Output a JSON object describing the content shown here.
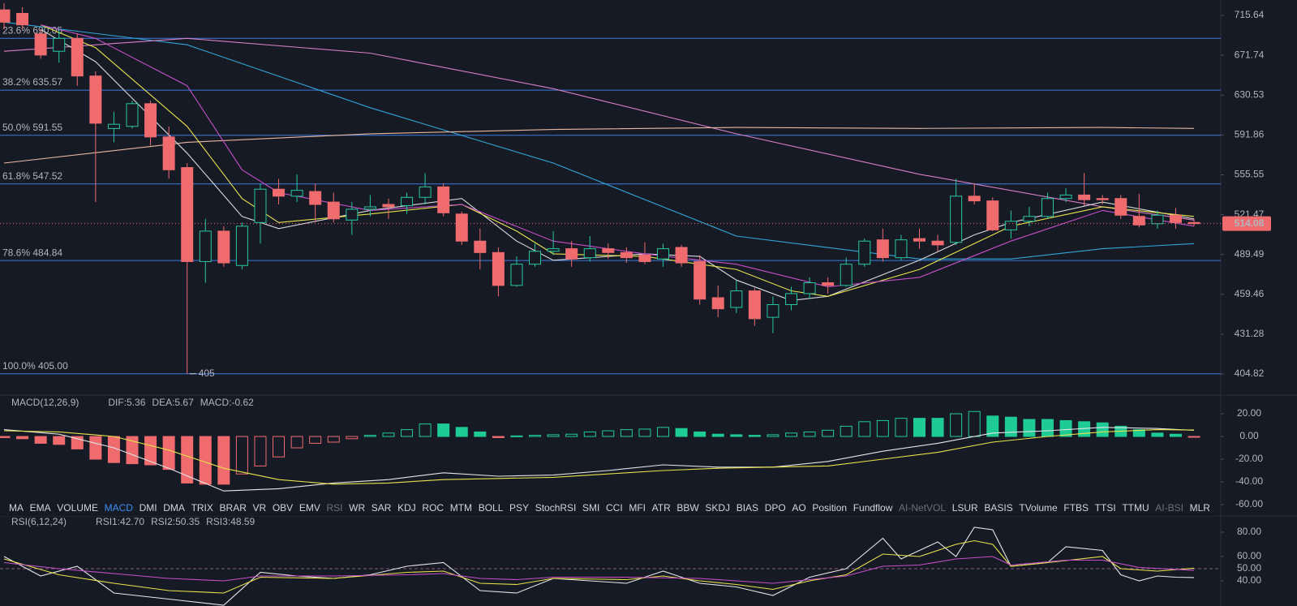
{
  "chart_data": [
    {
      "type": "candlestick",
      "log": true,
      "ylim": [
        391.5,
        733.4
      ],
      "yticks": [
        715.64,
        671.74,
        630.53,
        591.86,
        555.55,
        521.47,
        489.49,
        459.46,
        431.28,
        404.82
      ],
      "open": [
        722,
        718,
        695,
        676,
        690,
        650,
        598,
        600,
        622,
        590,
        562,
        484,
        508,
        481,
        515,
        543,
        537,
        541,
        532,
        517,
        526,
        530,
        529,
        536,
        545,
        522,
        500,
        491,
        466,
        482,
        492,
        494,
        487,
        494,
        491,
        489,
        486,
        495,
        484,
        457,
        450,
        462,
        443,
        452,
        460,
        468,
        466,
        482,
        501,
        487,
        502,
        500,
        499,
        537,
        533,
        509,
        516,
        520,
        535,
        538,
        535,
        535,
        520,
        514,
        521,
        515
      ],
      "high": [
        730,
        725,
        700,
        700,
        695,
        655,
        614,
        625,
        625,
        600,
        566,
        518,
        512,
        515,
        548,
        552,
        556,
        548,
        540,
        532,
        538,
        535,
        540,
        557,
        548,
        524,
        510,
        495,
        488,
        498,
        508,
        500,
        504,
        498,
        495,
        499,
        498,
        497,
        489,
        466,
        470,
        464,
        458,
        465,
        472,
        472,
        487,
        502,
        510,
        505,
        510,
        505,
        552,
        548,
        536,
        525,
        528,
        540,
        544,
        557,
        538,
        538,
        539,
        525,
        527,
        518
      ],
      "low": [
        700,
        700,
        668,
        664,
        640,
        532,
        585,
        598,
        582,
        552,
        405,
        468,
        480,
        478,
        498,
        530,
        532,
        515,
        515,
        505,
        520,
        518,
        522,
        530,
        520,
        497,
        478,
        458,
        465,
        480,
        489,
        480,
        484,
        486,
        483,
        482,
        480,
        480,
        452,
        443,
        446,
        437,
        432,
        448,
        456,
        460,
        465,
        480,
        484,
        485,
        494,
        492,
        497,
        530,
        508,
        502,
        512,
        518,
        532,
        529,
        530,
        518,
        511,
        510,
        510,
        512
      ],
      "close": [
        708,
        705,
        672,
        690,
        650,
        603,
        602,
        622,
        590,
        560,
        484,
        508,
        483,
        512,
        543,
        537,
        542,
        530,
        518,
        526,
        528,
        528,
        536,
        545,
        523,
        500,
        491,
        466,
        482,
        492,
        494,
        486,
        494,
        491,
        487,
        484,
        494,
        483,
        456,
        449,
        462,
        442,
        452,
        460,
        468,
        466,
        482,
        500,
        487,
        501,
        500,
        497,
        537,
        533,
        509,
        516,
        520,
        535,
        538,
        534,
        534,
        521,
        513,
        521,
        515,
        514.08
      ],
      "up_color": "#26c6a0",
      "down_color": "#ef6b6e",
      "series": [
        {
          "color": "#2fa6d8",
          "x": [
            0,
            10,
            20,
            30,
            40,
            50,
            55,
            60,
            65
          ],
          "values": [
            708,
            683,
            618,
            566,
            504,
            486,
            486,
            494,
            498
          ]
        },
        {
          "color": "#d77fc4",
          "x": [
            0,
            10,
            20,
            30,
            40,
            50,
            60,
            65
          ],
          "values": [
            676,
            690,
            674,
            637,
            593,
            556,
            528,
            517
          ]
        },
        {
          "color": "#e9b7a0",
          "x": [
            0,
            10,
            20,
            30,
            40,
            50,
            60,
            65
          ],
          "values": [
            566,
            585,
            593,
            597,
            599,
            598,
            599,
            598
          ]
        },
        {
          "color": "#d9d9d9",
          "x": [
            2,
            5,
            10,
            13,
            15,
            20,
            25,
            28,
            30,
            35,
            38,
            40,
            43,
            45,
            50,
            53,
            55,
            60,
            65
          ],
          "values": [
            700,
            665,
            575,
            520,
            510,
            525,
            535,
            500,
            485,
            490,
            488,
            470,
            455,
            458,
            485,
            505,
            515,
            532,
            518
          ]
        },
        {
          "color": "#e8e34a",
          "x": [
            2,
            5,
            10,
            13,
            15,
            20,
            25,
            28,
            30,
            35,
            40,
            43,
            45,
            50,
            53,
            55,
            60,
            65
          ],
          "values": [
            705,
            680,
            600,
            535,
            515,
            522,
            530,
            508,
            490,
            488,
            478,
            462,
            458,
            478,
            498,
            512,
            528,
            520
          ]
        },
        {
          "color": "#c64fc8",
          "x": [
            2,
            5,
            10,
            13,
            15,
            20,
            25,
            30,
            35,
            40,
            45,
            50,
            55,
            60,
            65
          ],
          "values": [
            705,
            690,
            640,
            560,
            540,
            525,
            530,
            500,
            490,
            482,
            465,
            472,
            500,
            525,
            512
          ]
        }
      ],
      "fib_color": "#3d7be0",
      "fib_levels": [
        {
          "value": 690.05,
          "label": "23.6% 690.05"
        },
        {
          "value": 635.57,
          "label": "38.2% 635.57"
        },
        {
          "value": 591.55,
          "label": "50.0% 591.55"
        },
        {
          "value": 547.52,
          "label": "61.8% 547.52"
        },
        {
          "value": 484.84,
          "label": "78.6% 484.84"
        },
        {
          "value": 405.0,
          "label": "100.0% 405.00"
        }
      ],
      "low_marker": 405,
      "last_price": 514.08
    },
    {
      "type": "macd",
      "title": "MACD(12,26,9)",
      "legend": [
        {
          "text": "DIF:5.36",
          "color": "#e6e6e6"
        },
        {
          "text": "DEA:5.67",
          "color": "#e8e34a"
        },
        {
          "text": "MACD:-0.62",
          "color": "#ef6b6e"
        }
      ],
      "ylim": [
        -65.7,
        34.3
      ],
      "yticks": [
        {
          "value": 20,
          "label": "20.00"
        },
        {
          "value": 0,
          "label": "0.00"
        },
        {
          "value": -20,
          "label": "-20.00"
        },
        {
          "value": -40,
          "label": "-40.00"
        },
        {
          "value": -60,
          "label": "-60.00"
        }
      ],
      "histogram": [
        -1,
        -2,
        -6,
        -7,
        -11,
        -20,
        -23,
        -24,
        -25,
        -29,
        -41,
        -42,
        -42,
        -33,
        -26,
        -18,
        -10,
        -6,
        -5,
        -2,
        1,
        3,
        6,
        11,
        11,
        8,
        4,
        -1,
        0.5,
        1,
        1.5,
        2,
        4,
        5,
        6,
        6.5,
        8,
        7,
        4,
        2,
        1.5,
        1,
        1.5,
        3,
        4,
        5.5,
        9,
        13,
        14,
        16,
        16,
        16,
        20,
        22,
        18,
        17,
        15,
        15,
        14,
        13,
        12,
        9,
        6,
        3,
        2,
        -0.62
      ],
      "up_color": "#1fcb95",
      "down_color": "#ef6b6e",
      "series": [
        {
          "color": "#e6e6e6",
          "x": [
            0,
            3,
            6,
            9,
            12,
            15,
            18,
            21,
            24,
            27,
            30,
            33,
            36,
            39,
            42,
            45,
            48,
            51,
            54,
            57,
            60,
            63,
            65
          ],
          "values": [
            6,
            2,
            -10,
            -28,
            -48,
            -46,
            -41,
            -38,
            -32,
            -35,
            -34,
            -30,
            -25,
            -27,
            -27,
            -22,
            -13,
            -6,
            3,
            5,
            8,
            7,
            5.36
          ]
        },
        {
          "color": "#e8e34a",
          "x": [
            0,
            3,
            6,
            9,
            12,
            15,
            18,
            21,
            24,
            27,
            30,
            33,
            36,
            39,
            42,
            45,
            48,
            51,
            54,
            57,
            60,
            63,
            65
          ],
          "values": [
            5,
            4,
            0,
            -12,
            -28,
            -38,
            -42,
            -41,
            -38,
            -37,
            -36,
            -33,
            -30,
            -28,
            -27,
            -26,
            -20,
            -14,
            -5,
            0,
            4,
            6,
            5.67
          ]
        }
      ]
    },
    {
      "type": "rsi",
      "title": "RSI(6,12,24)",
      "legend": [
        {
          "text": "RSI1:42.70",
          "color": "#e6e6e6"
        },
        {
          "text": "RSI2:50.35",
          "color": "#e8e34a"
        },
        {
          "text": "RSI3:48.59",
          "color": "#c64fc8"
        }
      ],
      "ylim": [
        19.3,
        93.3
      ],
      "yticks": [
        {
          "value": 80,
          "label": "80.00"
        },
        {
          "value": 60,
          "label": "60.00"
        },
        {
          "value": 50,
          "label": "50.00"
        },
        {
          "value": 40,
          "label": "40.00"
        }
      ],
      "dashed_tick": 2,
      "series": [
        {
          "color": "#e6e6e6",
          "x": [
            0,
            2,
            4,
            6,
            9,
            12,
            14,
            16,
            18,
            20,
            22,
            24,
            26,
            28,
            30,
            32,
            34,
            36,
            38,
            40,
            42,
            44,
            46,
            48,
            49,
            51,
            52,
            53,
            54,
            55,
            57,
            58,
            60,
            61,
            62,
            63,
            64,
            65
          ],
          "values": [
            60,
            44,
            52,
            30,
            25,
            20,
            47,
            44,
            42,
            45,
            52,
            55,
            32,
            30,
            42,
            40,
            38,
            48,
            38,
            35,
            28,
            43,
            50,
            75,
            58,
            72,
            60,
            84,
            82,
            52,
            55,
            68,
            65,
            45,
            40,
            44,
            43,
            42.7
          ]
        },
        {
          "color": "#e8e34a",
          "x": [
            0,
            3,
            6,
            9,
            12,
            14,
            18,
            22,
            24,
            26,
            28,
            30,
            34,
            36,
            38,
            40,
            42,
            44,
            46,
            48,
            50,
            52,
            53,
            54,
            55,
            57,
            60,
            61,
            63,
            65
          ],
          "values": [
            58,
            45,
            38,
            32,
            30,
            43,
            42,
            47,
            48,
            38,
            37,
            42,
            41,
            44,
            40,
            37,
            33,
            40,
            45,
            62,
            60,
            70,
            73,
            70,
            52,
            55,
            60,
            50,
            48,
            50.35
          ]
        },
        {
          "color": "#c64fc8",
          "x": [
            0,
            3,
            6,
            9,
            12,
            14,
            18,
            22,
            24,
            26,
            28,
            30,
            34,
            38,
            40,
            42,
            44,
            46,
            48,
            50,
            52,
            54,
            55,
            58,
            60,
            62,
            65
          ],
          "values": [
            55,
            50,
            46,
            42,
            40,
            44,
            44,
            45,
            46,
            42,
            41,
            43,
            43,
            42,
            40,
            38,
            41,
            44,
            52,
            53,
            58,
            60,
            53,
            57,
            57,
            51,
            48.59
          ]
        }
      ]
    }
  ],
  "tabs": {
    "items": [
      "MA",
      "EMA",
      "VOLUME",
      "MACD",
      "DMI",
      "DMA",
      "TRIX",
      "BRAR",
      "VR",
      "OBV",
      "EMV",
      "RSI",
      "WR",
      "SAR",
      "KDJ",
      "ROC",
      "MTM",
      "BOLL",
      "PSY",
      "StochRSI",
      "SMI",
      "CCI",
      "MFI",
      "ATR",
      "BBW",
      "SKDJ",
      "BIAS",
      "DPO",
      "AO",
      "Position",
      "Fundflow",
      "AI-NetVOL",
      "LSUR",
      "BASIS",
      "TVolume",
      "FTBS",
      "TTSI",
      "TTMU",
      "AI-BSI",
      "MLR"
    ],
    "active_index": 3,
    "dim_indices": [
      11,
      31,
      38
    ]
  }
}
